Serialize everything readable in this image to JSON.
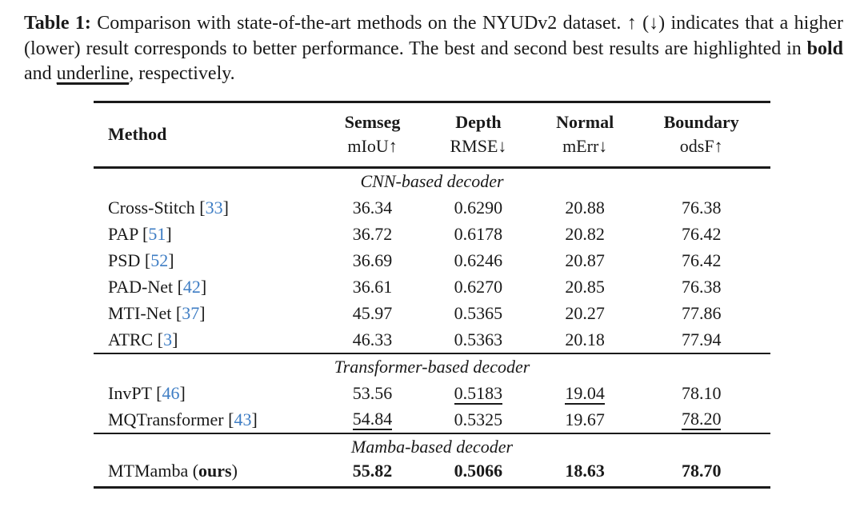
{
  "page": {
    "background": "#ffffff",
    "text_color": "#1a1a1a",
    "citation_color": "#3e7dc4"
  },
  "caption": {
    "label": "Table 1:",
    "body": " Comparison with state-of-the-art methods on the NYUDv2 dataset. ↑ (↓) indicates that a higher (lower) result corresponds to better performance. The best and second best results are highlighted in ",
    "bold_word": "bold",
    "mid": " and ",
    "underline_word": "underline",
    "tail": ", respectively."
  },
  "table": {
    "columns": [
      {
        "line1": "Method",
        "line2": ""
      },
      {
        "line1": "Semseg",
        "line2": "mIoU↑"
      },
      {
        "line1": "Depth",
        "line2": "RMSE↓"
      },
      {
        "line1": "Normal",
        "line2": "mErr↓"
      },
      {
        "line1": "Boundary",
        "line2": "odsF↑"
      }
    ],
    "sections": [
      {
        "title": "CNN-based decoder",
        "rows": [
          {
            "method_parts": [
              {
                "text": "Cross-Stitch",
                "style": "normal"
              }
            ],
            "cite": "33",
            "values": [
              {
                "text": "36.34",
                "style": "normal"
              },
              {
                "text": "0.6290",
                "style": "normal"
              },
              {
                "text": "20.88",
                "style": "normal"
              },
              {
                "text": "76.38",
                "style": "normal"
              }
            ]
          },
          {
            "method_parts": [
              {
                "text": "PAP",
                "style": "normal"
              }
            ],
            "cite": "51",
            "values": [
              {
                "text": "36.72",
                "style": "normal"
              },
              {
                "text": "0.6178",
                "style": "normal"
              },
              {
                "text": "20.82",
                "style": "normal"
              },
              {
                "text": "76.42",
                "style": "normal"
              }
            ]
          },
          {
            "method_parts": [
              {
                "text": "PSD",
                "style": "normal"
              }
            ],
            "cite": "52",
            "values": [
              {
                "text": "36.69",
                "style": "normal"
              },
              {
                "text": "0.6246",
                "style": "normal"
              },
              {
                "text": "20.87",
                "style": "normal"
              },
              {
                "text": "76.42",
                "style": "normal"
              }
            ]
          },
          {
            "method_parts": [
              {
                "text": "PAD-Net",
                "style": "normal"
              }
            ],
            "cite": "42",
            "values": [
              {
                "text": "36.61",
                "style": "normal"
              },
              {
                "text": "0.6270",
                "style": "normal"
              },
              {
                "text": "20.85",
                "style": "normal"
              },
              {
                "text": "76.38",
                "style": "normal"
              }
            ]
          },
          {
            "method_parts": [
              {
                "text": "MTI-Net",
                "style": "normal"
              }
            ],
            "cite": "37",
            "values": [
              {
                "text": "45.97",
                "style": "normal"
              },
              {
                "text": "0.5365",
                "style": "normal"
              },
              {
                "text": "20.27",
                "style": "normal"
              },
              {
                "text": "77.86",
                "style": "normal"
              }
            ]
          },
          {
            "method_parts": [
              {
                "text": "ATRC",
                "style": "normal"
              }
            ],
            "cite": "3",
            "values": [
              {
                "text": "46.33",
                "style": "normal"
              },
              {
                "text": "0.5363",
                "style": "normal"
              },
              {
                "text": "20.18",
                "style": "normal"
              },
              {
                "text": "77.94",
                "style": "normal"
              }
            ]
          }
        ]
      },
      {
        "title": "Transformer-based decoder",
        "rows": [
          {
            "method_parts": [
              {
                "text": "InvPT",
                "style": "normal"
              }
            ],
            "cite": "46",
            "values": [
              {
                "text": "53.56",
                "style": "normal"
              },
              {
                "text": "0.5183",
                "style": "underline"
              },
              {
                "text": "19.04",
                "style": "underline"
              },
              {
                "text": "78.10",
                "style": "normal"
              }
            ]
          },
          {
            "method_parts": [
              {
                "text": "MQTransformer",
                "style": "normal"
              }
            ],
            "cite": "43",
            "values": [
              {
                "text": "54.84",
                "style": "underline"
              },
              {
                "text": "0.5325",
                "style": "normal"
              },
              {
                "text": "19.67",
                "style": "normal"
              },
              {
                "text": "78.20",
                "style": "underline"
              }
            ]
          }
        ]
      },
      {
        "title": "Mamba-based decoder",
        "rows": [
          {
            "method_parts": [
              {
                "text": "MTMamba (",
                "style": "normal"
              },
              {
                "text": "ours",
                "style": "bold"
              },
              {
                "text": ")",
                "style": "normal"
              }
            ],
            "cite": null,
            "values": [
              {
                "text": "55.82",
                "style": "bold"
              },
              {
                "text": "0.5066",
                "style": "bold"
              },
              {
                "text": "18.63",
                "style": "bold"
              },
              {
                "text": "78.70",
                "style": "bold"
              }
            ]
          }
        ]
      }
    ]
  }
}
